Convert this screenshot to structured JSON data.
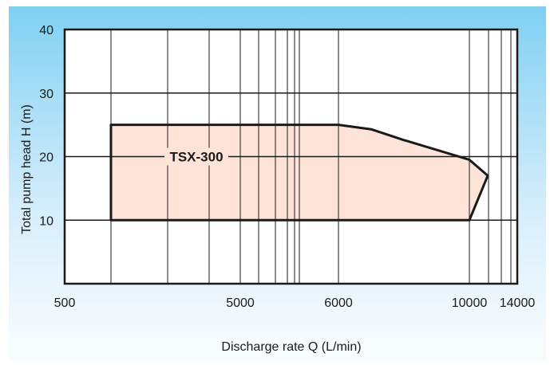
{
  "chart_data": {
    "type": "area",
    "title": "",
    "xlabel": "Discharge rate Q (L/min)",
    "ylabel": "Total pump head H (m)",
    "x_tick_labels": [
      "500",
      "5000",
      "6000",
      "10000",
      "14000"
    ],
    "y_ticks": [
      10,
      20,
      30,
      40
    ],
    "ylim": [
      0,
      40
    ],
    "grid": true,
    "series": [
      {
        "name": "TSX-300",
        "color": "#fde3d8",
        "points": [
          {
            "x": "780",
            "y": 25
          },
          {
            "x": "6000",
            "y": 25
          },
          {
            "x": "7000",
            "y": 24.3
          },
          {
            "x": "8000",
            "y": 22.6
          },
          {
            "x": "10000",
            "y": 19.5
          },
          {
            "x": "11000",
            "y": 17
          },
          {
            "x": "10000",
            "y": 10
          },
          {
            "x": "780",
            "y": 10
          }
        ]
      }
    ]
  }
}
